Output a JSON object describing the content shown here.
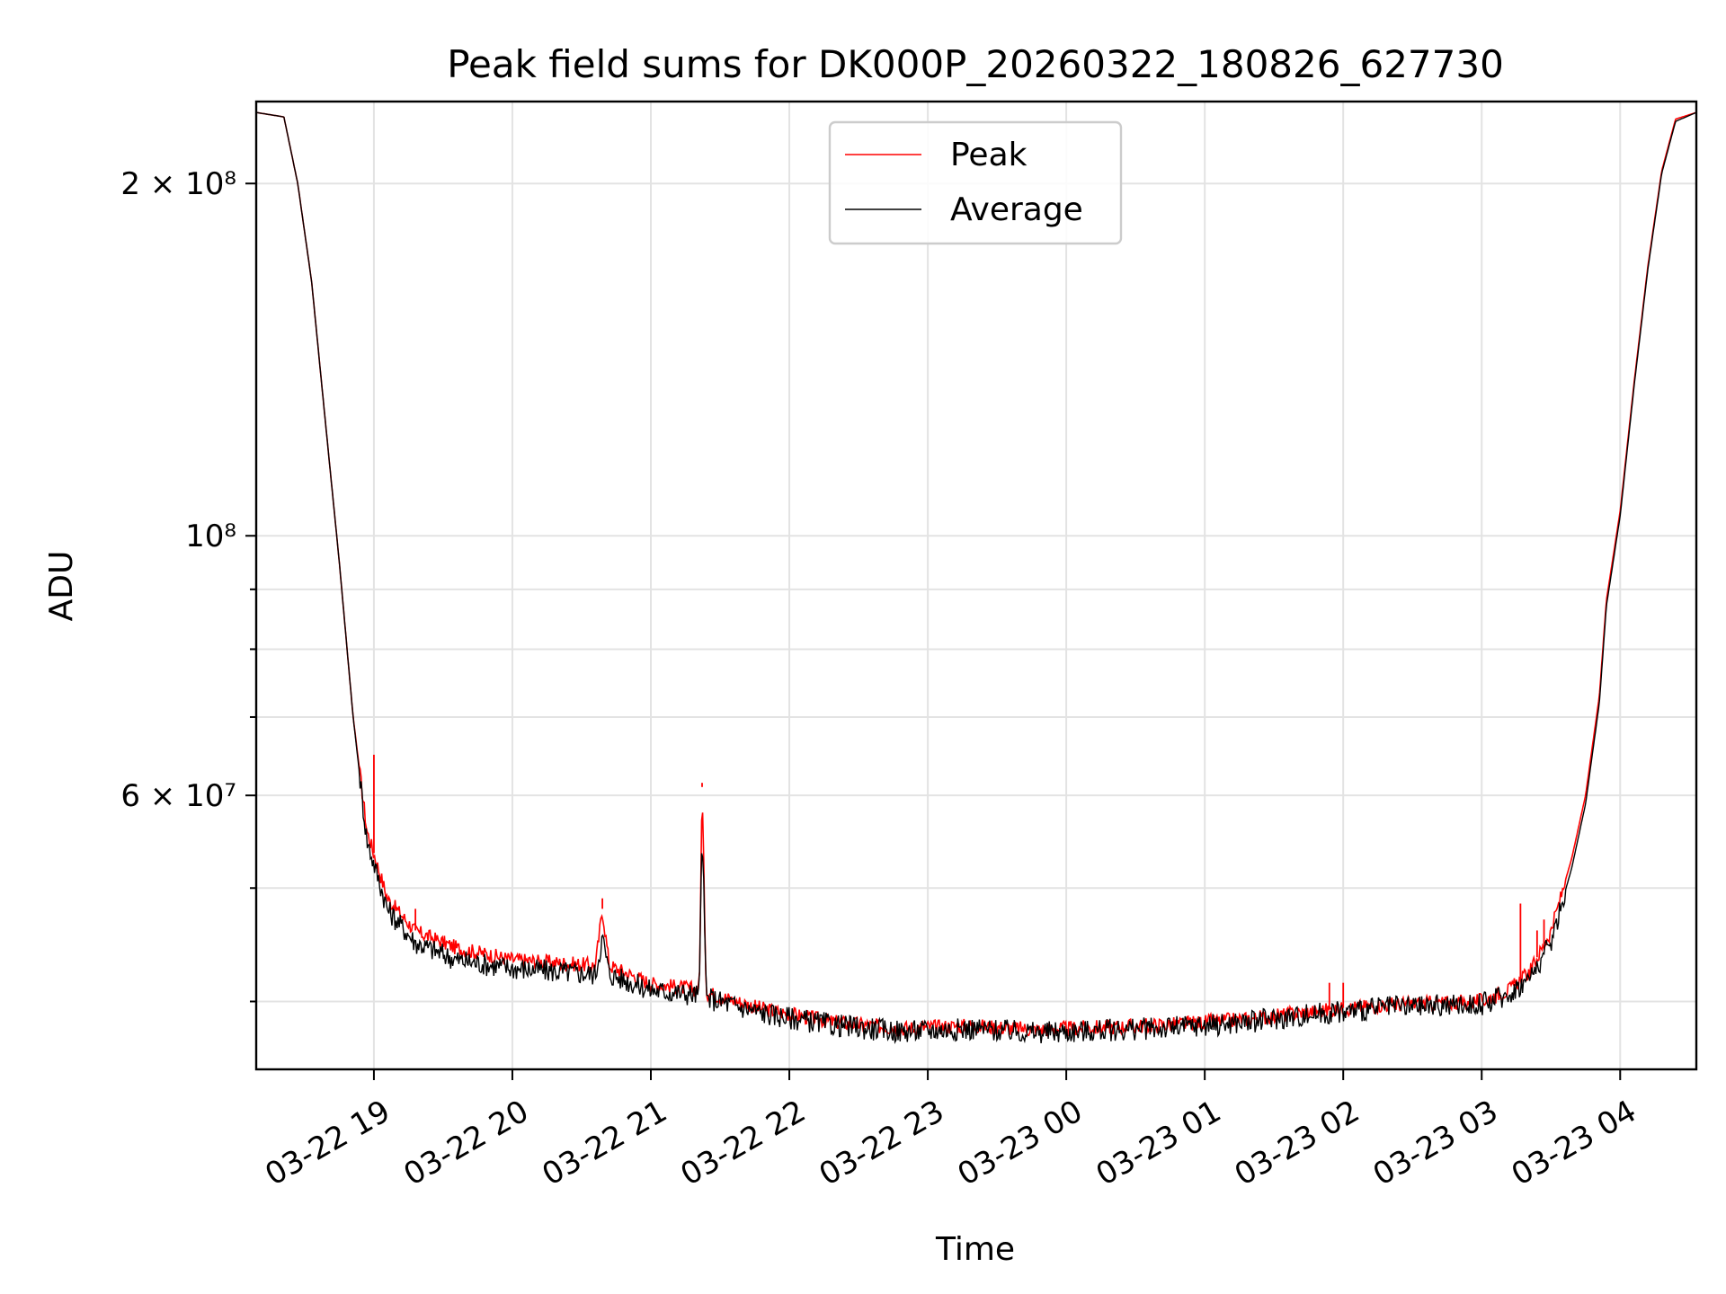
{
  "chart_data": {
    "type": "line",
    "title": "Peak field sums for DK000P_20260322_180826_627730",
    "xlabel": "Time",
    "ylabel": "ADU",
    "yscale": "log",
    "xlim_hours": [
      18.15,
      4.55
    ],
    "ylim": [
      35000000,
      235000000
    ],
    "x_ticks": [
      {
        "label": "03-22 19",
        "hour": 19
      },
      {
        "label": "03-22 20",
        "hour": 20
      },
      {
        "label": "03-22 21",
        "hour": 21
      },
      {
        "label": "03-22 22",
        "hour": 22
      },
      {
        "label": "03-22 23",
        "hour": 23
      },
      {
        "label": "03-23 00",
        "hour": 24
      },
      {
        "label": "03-23 01",
        "hour": 25
      },
      {
        "label": "03-23 02",
        "hour": 26
      },
      {
        "label": "03-23 03",
        "hour": 27
      },
      {
        "label": "03-23 04",
        "hour": 28
      }
    ],
    "y_major_ticks": [
      {
        "label": "2 × 10⁸",
        "value": 200000000
      },
      {
        "label": "10⁸",
        "value": 100000000
      },
      {
        "label": "6 × 10⁷",
        "value": 60000000
      }
    ],
    "y_minor_values": [
      90000000,
      80000000,
      70000000,
      50000000,
      40000000
    ],
    "legend": {
      "position": "upper-center",
      "entries": [
        {
          "name": "Peak",
          "color": "#ff0000"
        },
        {
          "name": "Average",
          "color": "#000000"
        }
      ]
    },
    "series": [
      {
        "name": "Peak",
        "color": "#ff0000",
        "points": [
          [
            18.15,
            230000000
          ],
          [
            18.35,
            228000000
          ],
          [
            18.45,
            200000000
          ],
          [
            18.55,
            165000000
          ],
          [
            18.65,
            125000000
          ],
          [
            18.75,
            95000000
          ],
          [
            18.85,
            70000000
          ],
          [
            18.95,
            56000000
          ],
          [
            19.1,
            49000000
          ],
          [
            19.3,
            46000000
          ],
          [
            19.6,
            44500000
          ],
          [
            20.0,
            43500000
          ],
          [
            20.6,
            43000000
          ],
          [
            20.65,
            48000000
          ],
          [
            20.7,
            43000000
          ],
          [
            21.0,
            41500000
          ],
          [
            21.35,
            41000000
          ],
          [
            21.37,
            61000000
          ],
          [
            21.4,
            40800000
          ],
          [
            21.8,
            39500000
          ],
          [
            22.3,
            38500000
          ],
          [
            22.8,
            38000000
          ],
          [
            23.3,
            38200000
          ],
          [
            23.8,
            37900000
          ],
          [
            24.3,
            38100000
          ],
          [
            24.8,
            38300000
          ],
          [
            25.3,
            38700000
          ],
          [
            25.8,
            39300000
          ],
          [
            26.3,
            39800000
          ],
          [
            26.8,
            40000000
          ],
          [
            27.0,
            40100000
          ],
          [
            27.2,
            41000000
          ],
          [
            27.35,
            42500000
          ],
          [
            27.5,
            46000000
          ],
          [
            27.65,
            53000000
          ],
          [
            27.75,
            60000000
          ],
          [
            27.85,
            73000000
          ],
          [
            27.9,
            88000000
          ],
          [
            28.0,
            105000000
          ],
          [
            28.1,
            135000000
          ],
          [
            28.2,
            170000000
          ],
          [
            28.3,
            205000000
          ],
          [
            28.4,
            227000000
          ],
          [
            28.55,
            230000000
          ]
        ]
      },
      {
        "name": "Average",
        "color": "#000000",
        "points": [
          [
            18.15,
            230000000
          ],
          [
            18.35,
            228000000
          ],
          [
            18.45,
            200000000
          ],
          [
            18.55,
            165000000
          ],
          [
            18.65,
            125000000
          ],
          [
            18.75,
            95000000
          ],
          [
            18.85,
            70000000
          ],
          [
            18.95,
            55000000
          ],
          [
            19.1,
            48000000
          ],
          [
            19.3,
            45000000
          ],
          [
            19.6,
            43500000
          ],
          [
            20.0,
            42800000
          ],
          [
            20.6,
            42300000
          ],
          [
            20.65,
            45500000
          ],
          [
            20.7,
            42300000
          ],
          [
            21.0,
            41000000
          ],
          [
            21.35,
            40600000
          ],
          [
            21.37,
            57000000
          ],
          [
            21.4,
            40400000
          ],
          [
            21.8,
            39200000
          ],
          [
            22.3,
            38300000
          ],
          [
            22.8,
            37800000
          ],
          [
            23.3,
            38000000
          ],
          [
            23.8,
            37700000
          ],
          [
            24.3,
            37900000
          ],
          [
            24.8,
            38100000
          ],
          [
            25.3,
            38500000
          ],
          [
            25.8,
            39100000
          ],
          [
            26.3,
            39600000
          ],
          [
            26.8,
            39800000
          ],
          [
            27.0,
            39900000
          ],
          [
            27.2,
            40700000
          ],
          [
            27.35,
            42000000
          ],
          [
            27.5,
            45000000
          ],
          [
            27.65,
            52000000
          ],
          [
            27.75,
            59000000
          ],
          [
            27.85,
            72000000
          ],
          [
            27.9,
            87000000
          ],
          [
            28.0,
            104000000
          ],
          [
            28.1,
            134000000
          ],
          [
            28.2,
            169000000
          ],
          [
            28.3,
            204000000
          ],
          [
            28.4,
            226000000
          ],
          [
            28.55,
            230000000
          ]
        ]
      }
    ],
    "spikes": [
      {
        "series": "Peak",
        "hour": 19.0,
        "value": 65000000
      },
      {
        "series": "Peak",
        "hour": 19.3,
        "value": 48000000
      },
      {
        "series": "Peak",
        "hour": 20.65,
        "value": 49000000
      },
      {
        "series": "Peak",
        "hour": 21.37,
        "value": 61500000
      },
      {
        "series": "Peak",
        "hour": 25.9,
        "value": 41500000
      },
      {
        "series": "Peak",
        "hour": 26.0,
        "value": 41500000
      },
      {
        "series": "Peak",
        "hour": 27.28,
        "value": 48500000
      },
      {
        "series": "Peak",
        "hour": 27.4,
        "value": 46000000
      },
      {
        "series": "Peak",
        "hour": 27.45,
        "value": 47000000
      }
    ]
  }
}
